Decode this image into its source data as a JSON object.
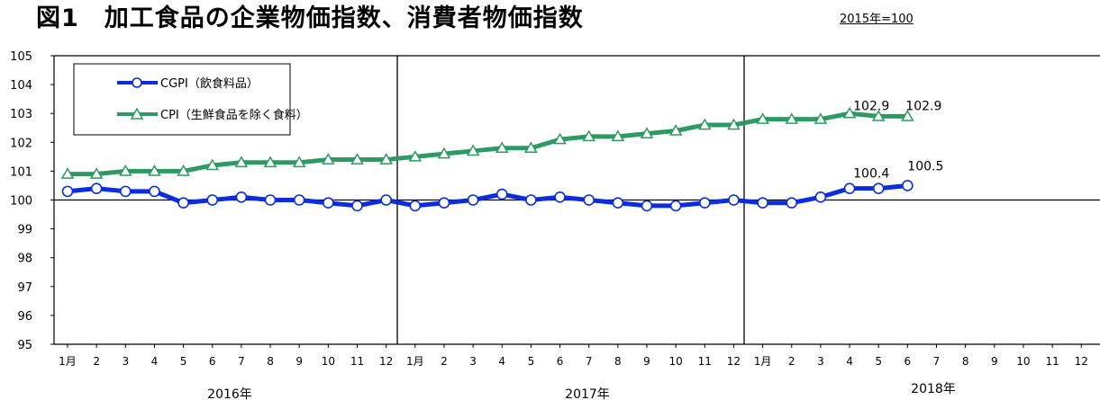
{
  "title": "図1　加工食品の企業物価指数、消費者物価指数",
  "unit_note": "2015年=100",
  "chart_data": {
    "type": "line",
    "y_ticks": [
      "105",
      "104",
      "103",
      "102",
      "101",
      "100",
      "99",
      "98",
      "97",
      "96",
      "95"
    ],
    "ylim": [
      95,
      105
    ],
    "x_tick_labels": [
      "1月",
      "2",
      "3",
      "4",
      "5",
      "6",
      "7",
      "8",
      "9",
      "10",
      "11",
      "12",
      "1月",
      "2",
      "3",
      "4",
      "5",
      "6",
      "7",
      "8",
      "9",
      "10",
      "11",
      "12",
      "1月",
      "2",
      "3",
      "4",
      "5",
      "6",
      "7",
      "8",
      "9",
      "10",
      "11",
      "12"
    ],
    "year_labels": [
      "2016年",
      "2017年",
      "2018年"
    ],
    "baseline": 100,
    "series": [
      {
        "name": "CGPI（飲食料品）",
        "color": "#0a2de0",
        "marker": "circle",
        "values": [
          100.3,
          100.4,
          100.3,
          100.3,
          99.9,
          100.0,
          100.1,
          100.0,
          100.0,
          99.9,
          99.8,
          100.0,
          99.8,
          99.9,
          100.0,
          100.2,
          100.0,
          100.1,
          100.0,
          99.9,
          99.8,
          99.8,
          99.9,
          100.0,
          99.9,
          99.9,
          100.1,
          100.4,
          100.4,
          100.5
        ]
      },
      {
        "name": "CPI（生鮮食品を除く食料）",
        "color": "#2e9a63",
        "marker": "triangle",
        "values": [
          100.9,
          100.9,
          101.0,
          101.0,
          101.0,
          101.2,
          101.3,
          101.3,
          101.3,
          101.4,
          101.4,
          101.4,
          101.5,
          101.6,
          101.7,
          101.8,
          101.8,
          102.1,
          102.2,
          102.2,
          102.3,
          102.4,
          102.6,
          102.6,
          102.8,
          102.8,
          102.8,
          103.0,
          102.9,
          102.9
        ]
      }
    ],
    "data_labels": [
      {
        "series": 1,
        "index": 28,
        "text": "102.9"
      },
      {
        "series": 1,
        "index": 29,
        "text": "102.9"
      },
      {
        "series": 0,
        "index": 28,
        "text": "100.4"
      },
      {
        "series": 0,
        "index": 29,
        "text": "100.5"
      }
    ]
  }
}
